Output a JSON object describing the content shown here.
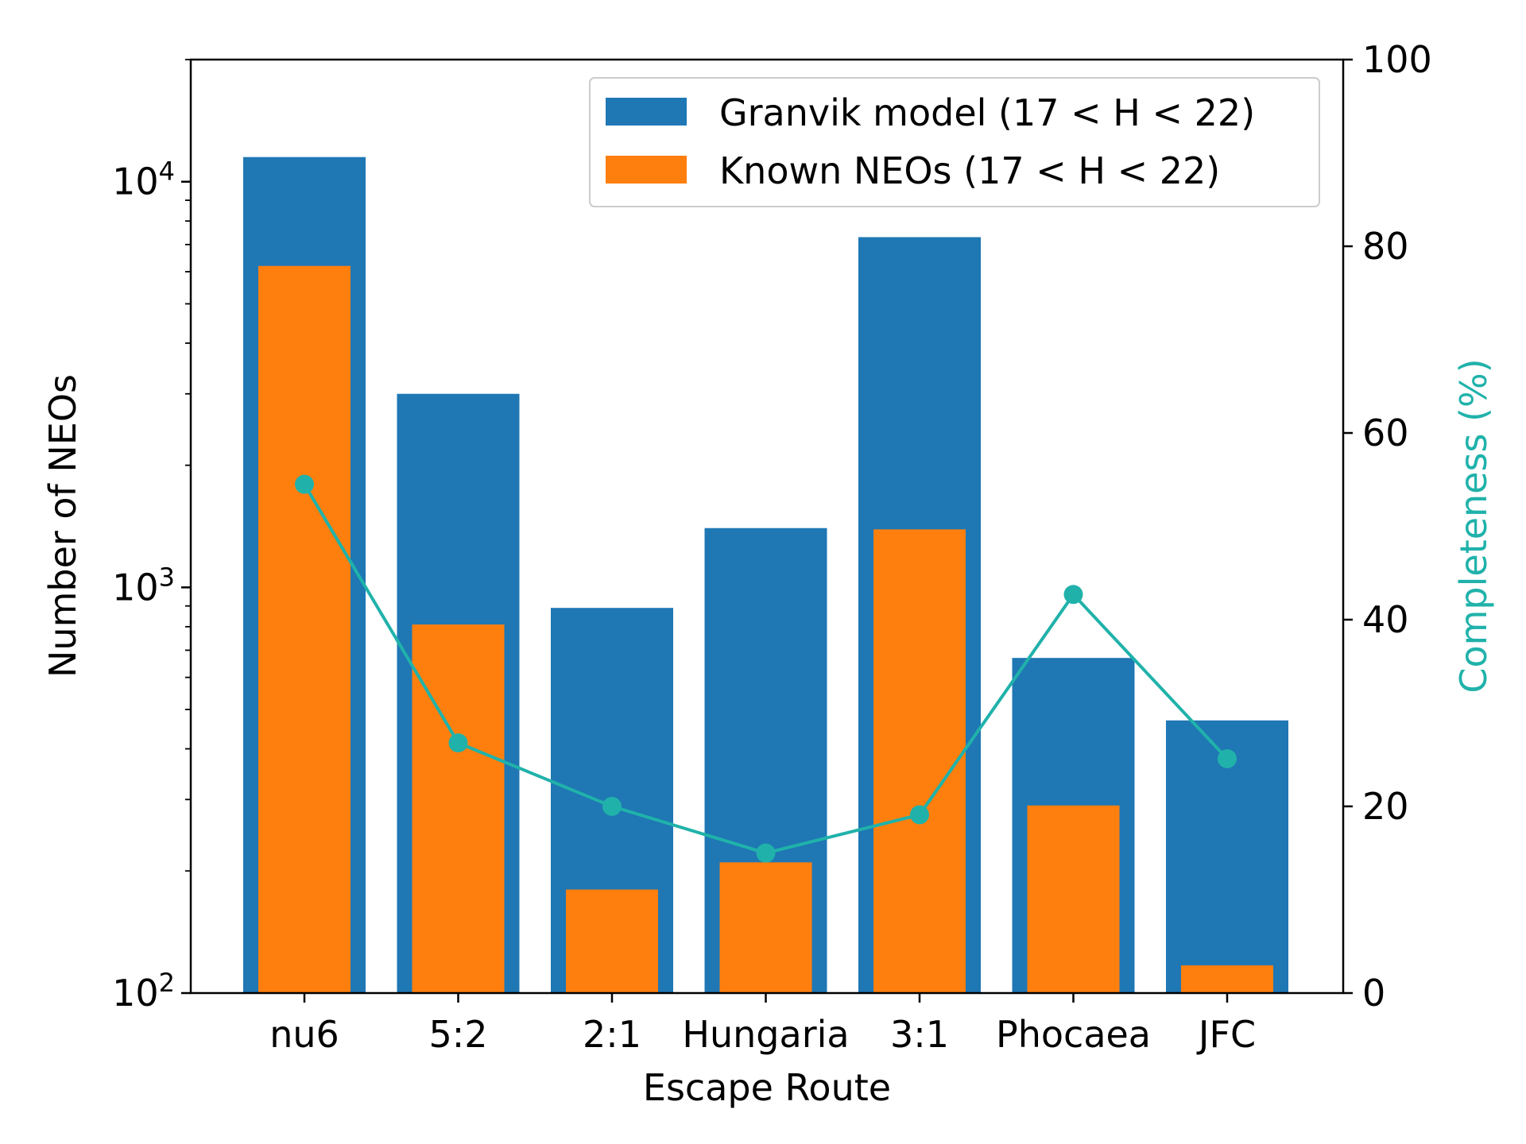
{
  "chart_data": {
    "type": "bar",
    "xlabel": "Escape Route",
    "ylabel": "Number of NEOs",
    "y2label": "Completeness (%)",
    "yscale": "log",
    "ylim": [
      100,
      20000
    ],
    "y2lim": [
      0,
      100
    ],
    "categories": [
      "nu6",
      "5:2",
      "2:1",
      "Hungaria",
      "3:1",
      "Phocaea",
      "JFC"
    ],
    "y_ticks": [
      {
        "value": 100,
        "base": "10",
        "exp": "2"
      },
      {
        "value": 1000,
        "base": "10",
        "exp": "3"
      },
      {
        "value": 10000,
        "base": "10",
        "exp": "4"
      }
    ],
    "y2_ticks": [
      "0",
      "20",
      "40",
      "60",
      "80",
      "100"
    ],
    "series": [
      {
        "name": "Granvik model (17 < H < 22)",
        "kind": "bar",
        "color": "#1f77b4",
        "values": [
          11500,
          3000,
          890,
          1400,
          7300,
          670,
          470
        ]
      },
      {
        "name": "Known NEOs (17 < H < 22)",
        "kind": "bar",
        "color": "#ff7f0e",
        "values": [
          6200,
          810,
          180,
          210,
          1390,
          290,
          117
        ]
      },
      {
        "name": "Completeness",
        "kind": "line",
        "axis": "right",
        "color": "#20b2aa",
        "values": [
          54.5,
          26.8,
          20.0,
          15.0,
          19.1,
          42.7,
          25.1
        ]
      }
    ],
    "legend": {
      "location": "top-right"
    }
  }
}
